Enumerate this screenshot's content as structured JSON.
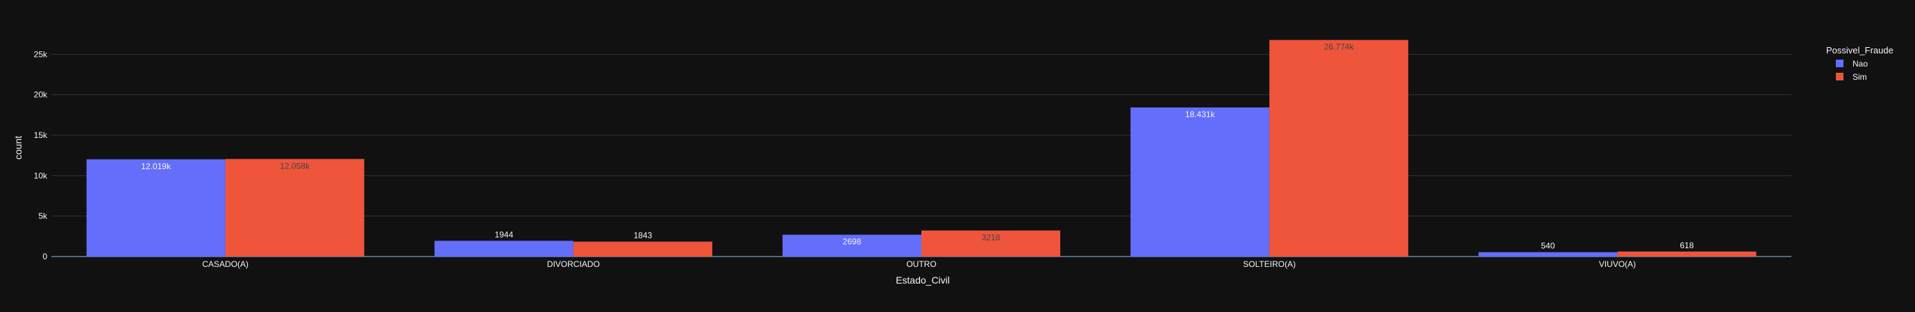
{
  "chart_data": {
    "type": "bar",
    "barmode": "group",
    "xlabel": "Estado_Civil",
    "ylabel": "count",
    "categories": [
      "CASADO(A)",
      "DIVORCIADO",
      "OUTRO",
      "SOLTEIRO(A)",
      "VIUVO(A)"
    ],
    "ylim": [
      0,
      28000
    ],
    "yticks": [
      0,
      5000,
      10000,
      15000,
      20000,
      25000
    ],
    "ytick_labels": [
      "0",
      "5k",
      "10k",
      "15k",
      "20k",
      "25k"
    ],
    "grid": true,
    "legend": {
      "title": "Possivel_Fraude",
      "position": "top-right"
    },
    "series": [
      {
        "name": "Nao",
        "color": "#636efa",
        "values": [
          12019,
          1944,
          2698,
          18431,
          540
        ],
        "labels": [
          "12.019k",
          "1944",
          "2698",
          "18.431k",
          "540"
        ]
      },
      {
        "name": "Sim",
        "color": "#ef553b",
        "values": [
          12058,
          1843,
          3218,
          26774,
          618
        ],
        "labels": [
          "12.058k",
          "1843",
          "3218",
          "26.774k",
          "618"
        ]
      }
    ]
  },
  "colors": {
    "background": "#111111",
    "grid": "#283442",
    "text": "#f2f5fa",
    "inside_label_dark": "#444444"
  }
}
